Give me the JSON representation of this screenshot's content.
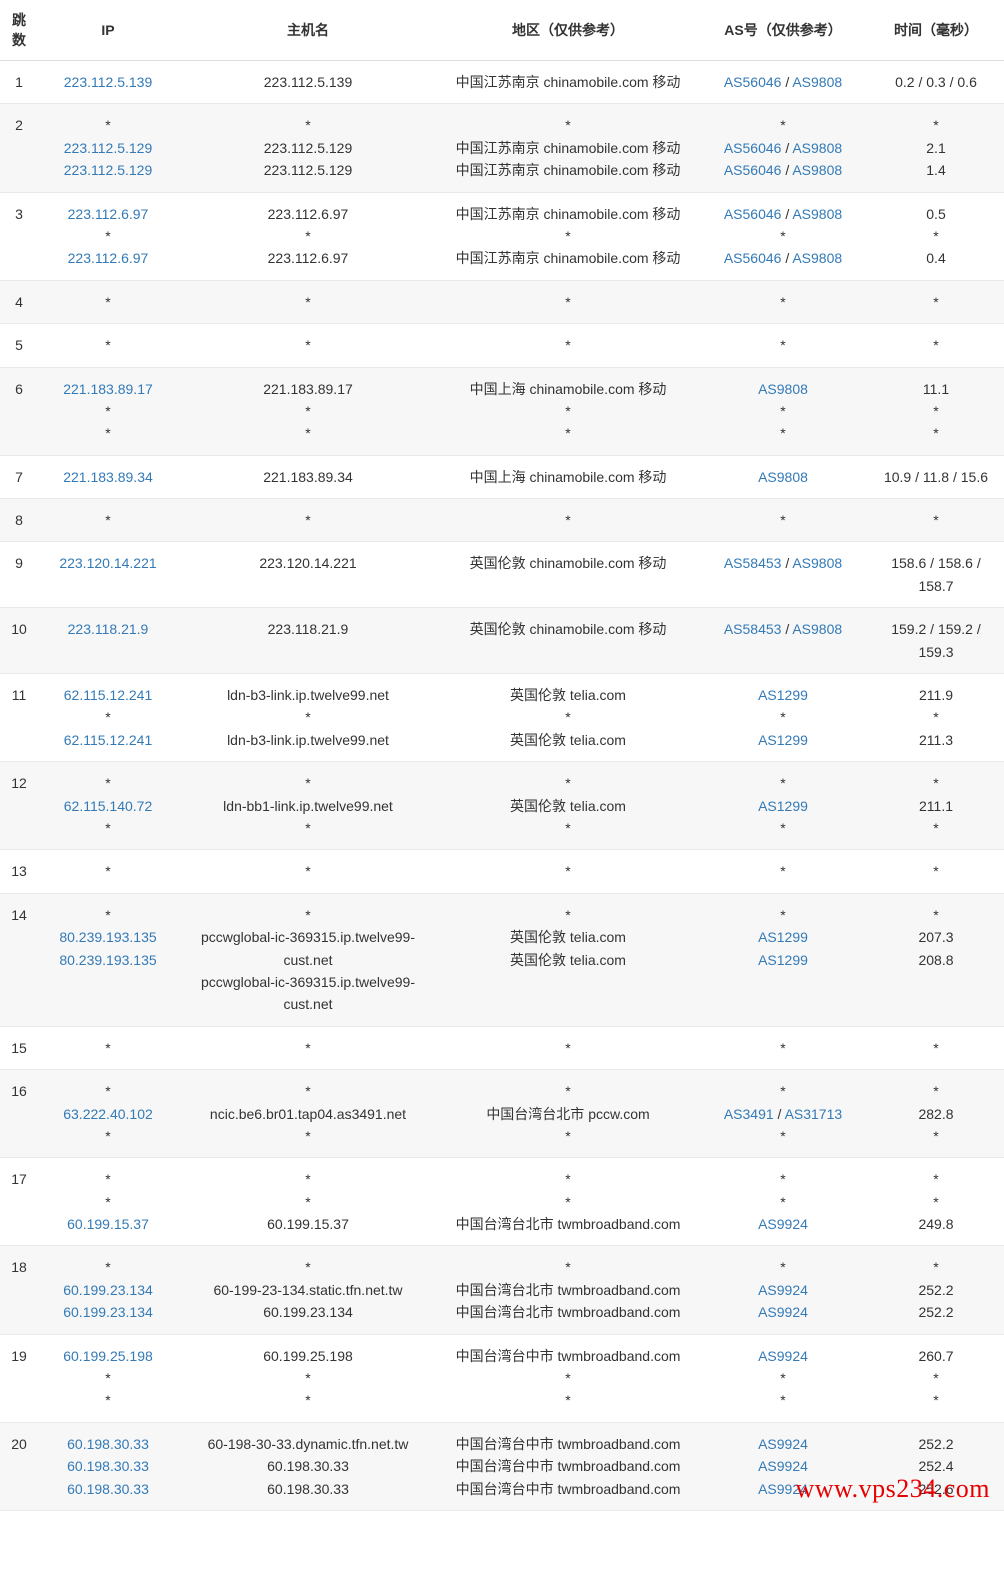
{
  "watermark": "www.vps234.com",
  "columns": [
    "跳数",
    "IP",
    "主机名",
    "地区（仅供参考）",
    "AS号（仅供参考）",
    "时间（毫秒）"
  ],
  "rows": [
    {
      "hop": "1",
      "ip": [
        {
          "text": "223.112.5.139",
          "link": true
        }
      ],
      "host": [
        {
          "text": "223.112.5.139",
          "link": false
        }
      ],
      "region": [
        {
          "text": "中国江苏南京 chinamobile.com 移动",
          "link": false
        }
      ],
      "asn": [
        {
          "text": "AS56046",
          "link": true
        },
        {
          "text": " / ",
          "link": false,
          "inline": true
        },
        {
          "text": "AS9808",
          "link": true
        }
      ],
      "asn_lines": [
        "AS56046 / AS9808"
      ],
      "time": [
        {
          "text": "0.2 / 0.3 / 0.6",
          "link": false
        }
      ]
    },
    {
      "hop": "2",
      "ip": [
        {
          "text": "*",
          "link": false
        },
        {
          "text": "223.112.5.129",
          "link": true
        },
        {
          "text": "223.112.5.129",
          "link": true
        }
      ],
      "host": [
        {
          "text": "*",
          "link": false
        },
        {
          "text": "223.112.5.129",
          "link": false
        },
        {
          "text": "223.112.5.129",
          "link": false
        }
      ],
      "region": [
        {
          "text": "*",
          "link": false
        },
        {
          "text": "中国江苏南京 chinamobile.com 移动",
          "link": false
        },
        {
          "text": "中国江苏南京 chinamobile.com 移动",
          "link": false
        }
      ],
      "asn_lines": [
        "*",
        "AS56046 / AS9808",
        "AS56046 / AS9808"
      ],
      "time": [
        {
          "text": "*",
          "link": false
        },
        {
          "text": "2.1",
          "link": false
        },
        {
          "text": "1.4",
          "link": false
        }
      ]
    },
    {
      "hop": "3",
      "ip": [
        {
          "text": "223.112.6.97",
          "link": true
        },
        {
          "text": "*",
          "link": false
        },
        {
          "text": "223.112.6.97",
          "link": true
        }
      ],
      "host": [
        {
          "text": "223.112.6.97",
          "link": false
        },
        {
          "text": "*",
          "link": false
        },
        {
          "text": "223.112.6.97",
          "link": false
        }
      ],
      "region": [
        {
          "text": "中国江苏南京 chinamobile.com 移动",
          "link": false
        },
        {
          "text": "*",
          "link": false
        },
        {
          "text": "中国江苏南京 chinamobile.com 移动",
          "link": false
        }
      ],
      "asn_lines": [
        "AS56046 / AS9808",
        "*",
        "AS56046 / AS9808"
      ],
      "time": [
        {
          "text": "0.5",
          "link": false
        },
        {
          "text": "*",
          "link": false
        },
        {
          "text": "0.4",
          "link": false
        }
      ]
    },
    {
      "hop": "4",
      "ip": [
        {
          "text": "*",
          "link": false
        }
      ],
      "host": [
        {
          "text": "*",
          "link": false
        }
      ],
      "region": [
        {
          "text": "*",
          "link": false
        }
      ],
      "asn_lines": [
        "*"
      ],
      "time": [
        {
          "text": "*",
          "link": false
        }
      ]
    },
    {
      "hop": "5",
      "ip": [
        {
          "text": "*",
          "link": false
        }
      ],
      "host": [
        {
          "text": "*",
          "link": false
        }
      ],
      "region": [
        {
          "text": "*",
          "link": false
        }
      ],
      "asn_lines": [
        "*"
      ],
      "time": [
        {
          "text": "*",
          "link": false
        }
      ]
    },
    {
      "hop": "6",
      "ip": [
        {
          "text": "221.183.89.17",
          "link": true
        },
        {
          "text": "*",
          "link": false
        },
        {
          "text": "*",
          "link": false
        }
      ],
      "host": [
        {
          "text": "221.183.89.17",
          "link": false
        },
        {
          "text": "*",
          "link": false
        },
        {
          "text": "*",
          "link": false
        }
      ],
      "region": [
        {
          "text": "中国上海 chinamobile.com 移动",
          "link": false
        },
        {
          "text": "*",
          "link": false
        },
        {
          "text": "*",
          "link": false
        }
      ],
      "asn_lines": [
        "AS9808",
        "*",
        "*"
      ],
      "time": [
        {
          "text": "11.1",
          "link": false
        },
        {
          "text": "*",
          "link": false
        },
        {
          "text": "*",
          "link": false
        }
      ]
    },
    {
      "hop": "7",
      "ip": [
        {
          "text": "221.183.89.34",
          "link": true
        }
      ],
      "host": [
        {
          "text": "221.183.89.34",
          "link": false
        }
      ],
      "region": [
        {
          "text": "中国上海 chinamobile.com 移动",
          "link": false
        }
      ],
      "asn_lines": [
        "AS9808"
      ],
      "time": [
        {
          "text": "10.9 / 11.8 / 15.6",
          "link": false
        }
      ]
    },
    {
      "hop": "8",
      "ip": [
        {
          "text": "*",
          "link": false
        }
      ],
      "host": [
        {
          "text": "*",
          "link": false
        }
      ],
      "region": [
        {
          "text": "*",
          "link": false
        }
      ],
      "asn_lines": [
        "*"
      ],
      "time": [
        {
          "text": "*",
          "link": false
        }
      ]
    },
    {
      "hop": "9",
      "ip": [
        {
          "text": "223.120.14.221",
          "link": true
        }
      ],
      "host": [
        {
          "text": "223.120.14.221",
          "link": false
        }
      ],
      "region": [
        {
          "text": "英国伦敦 chinamobile.com 移动",
          "link": false
        }
      ],
      "asn_lines": [
        "AS58453 / AS9808"
      ],
      "time": [
        {
          "text": "158.6 / 158.6 / 158.7",
          "link": false
        }
      ]
    },
    {
      "hop": "10",
      "ip": [
        {
          "text": "223.118.21.9",
          "link": true
        }
      ],
      "host": [
        {
          "text": "223.118.21.9",
          "link": false
        }
      ],
      "region": [
        {
          "text": "英国伦敦 chinamobile.com 移动",
          "link": false
        }
      ],
      "asn_lines": [
        "AS58453 / AS9808"
      ],
      "time": [
        {
          "text": "159.2 / 159.2 / 159.3",
          "link": false
        }
      ]
    },
    {
      "hop": "11",
      "ip": [
        {
          "text": "62.115.12.241",
          "link": true
        },
        {
          "text": "*",
          "link": false
        },
        {
          "text": "62.115.12.241",
          "link": true
        }
      ],
      "host": [
        {
          "text": "ldn-b3-link.ip.twelve99.net",
          "link": false
        },
        {
          "text": "*",
          "link": false
        },
        {
          "text": "ldn-b3-link.ip.twelve99.net",
          "link": false
        }
      ],
      "region": [
        {
          "text": "英国伦敦 telia.com",
          "link": false
        },
        {
          "text": "*",
          "link": false
        },
        {
          "text": "英国伦敦 telia.com",
          "link": false
        }
      ],
      "asn_lines": [
        "AS1299",
        "*",
        "AS1299"
      ],
      "time": [
        {
          "text": "211.9",
          "link": false
        },
        {
          "text": "*",
          "link": false
        },
        {
          "text": "211.3",
          "link": false
        }
      ]
    },
    {
      "hop": "12",
      "ip": [
        {
          "text": "*",
          "link": false
        },
        {
          "text": "62.115.140.72",
          "link": true
        },
        {
          "text": "*",
          "link": false
        }
      ],
      "host": [
        {
          "text": "*",
          "link": false
        },
        {
          "text": "ldn-bb1-link.ip.twelve99.net",
          "link": false
        },
        {
          "text": "*",
          "link": false
        }
      ],
      "region": [
        {
          "text": "*",
          "link": false
        },
        {
          "text": "英国伦敦 telia.com",
          "link": false
        },
        {
          "text": "*",
          "link": false
        }
      ],
      "asn_lines": [
        "*",
        "AS1299",
        "*"
      ],
      "time": [
        {
          "text": "*",
          "link": false
        },
        {
          "text": "211.1",
          "link": false
        },
        {
          "text": "*",
          "link": false
        }
      ]
    },
    {
      "hop": "13",
      "ip": [
        {
          "text": "*",
          "link": false
        }
      ],
      "host": [
        {
          "text": "*",
          "link": false
        }
      ],
      "region": [
        {
          "text": "*",
          "link": false
        }
      ],
      "asn_lines": [
        "*"
      ],
      "time": [
        {
          "text": "*",
          "link": false
        }
      ]
    },
    {
      "hop": "14",
      "ip": [
        {
          "text": "*",
          "link": false
        },
        {
          "text": "80.239.193.135",
          "link": true
        },
        {
          "text": "80.239.193.135",
          "link": true
        }
      ],
      "host": [
        {
          "text": "*",
          "link": false
        },
        {
          "text": "pccwglobal-ic-369315.ip.twelve99-cust.net",
          "link": false
        },
        {
          "text": "pccwglobal-ic-369315.ip.twelve99-cust.net",
          "link": false
        }
      ],
      "region": [
        {
          "text": "*",
          "link": false
        },
        {
          "text": "英国伦敦 telia.com",
          "link": false
        },
        {
          "text": "英国伦敦 telia.com",
          "link": false
        }
      ],
      "asn_lines": [
        "*",
        "AS1299",
        "AS1299"
      ],
      "time": [
        {
          "text": "*",
          "link": false
        },
        {
          "text": "207.3",
          "link": false
        },
        {
          "text": "208.8",
          "link": false
        }
      ]
    },
    {
      "hop": "15",
      "ip": [
        {
          "text": "*",
          "link": false
        }
      ],
      "host": [
        {
          "text": "*",
          "link": false
        }
      ],
      "region": [
        {
          "text": "*",
          "link": false
        }
      ],
      "asn_lines": [
        "*"
      ],
      "time": [
        {
          "text": "*",
          "link": false
        }
      ]
    },
    {
      "hop": "16",
      "ip": [
        {
          "text": "*",
          "link": false
        },
        {
          "text": "63.222.40.102",
          "link": true
        },
        {
          "text": "*",
          "link": false
        }
      ],
      "host": [
        {
          "text": "*",
          "link": false
        },
        {
          "text": "ncic.be6.br01.tap04.as3491.net",
          "link": false
        },
        {
          "text": "*",
          "link": false
        }
      ],
      "region": [
        {
          "text": "*",
          "link": false
        },
        {
          "text": "中国台湾台北市 pccw.com",
          "link": false
        },
        {
          "text": "*",
          "link": false
        }
      ],
      "asn_lines": [
        "*",
        "AS3491 / AS31713",
        "*"
      ],
      "time": [
        {
          "text": "*",
          "link": false
        },
        {
          "text": "282.8",
          "link": false
        },
        {
          "text": "*",
          "link": false
        }
      ]
    },
    {
      "hop": "17",
      "ip": [
        {
          "text": "*",
          "link": false
        },
        {
          "text": "*",
          "link": false
        },
        {
          "text": "60.199.15.37",
          "link": true
        }
      ],
      "host": [
        {
          "text": "*",
          "link": false
        },
        {
          "text": "*",
          "link": false
        },
        {
          "text": "60.199.15.37",
          "link": false
        }
      ],
      "region": [
        {
          "text": "*",
          "link": false
        },
        {
          "text": "*",
          "link": false
        },
        {
          "text": "中国台湾台北市 twmbroadband.com",
          "link": false
        }
      ],
      "asn_lines": [
        "*",
        "*",
        "AS9924"
      ],
      "time": [
        {
          "text": "*",
          "link": false
        },
        {
          "text": "*",
          "link": false
        },
        {
          "text": "249.8",
          "link": false
        }
      ]
    },
    {
      "hop": "18",
      "ip": [
        {
          "text": "*",
          "link": false
        },
        {
          "text": "60.199.23.134",
          "link": true
        },
        {
          "text": "60.199.23.134",
          "link": true
        }
      ],
      "host": [
        {
          "text": "*",
          "link": false
        },
        {
          "text": "60-199-23-134.static.tfn.net.tw",
          "link": false
        },
        {
          "text": "60.199.23.134",
          "link": false
        }
      ],
      "region": [
        {
          "text": "*",
          "link": false
        },
        {
          "text": "中国台湾台北市 twmbroadband.com",
          "link": false
        },
        {
          "text": "中国台湾台北市 twmbroadband.com",
          "link": false
        }
      ],
      "asn_lines": [
        "*",
        "AS9924",
        "AS9924"
      ],
      "time": [
        {
          "text": "*",
          "link": false
        },
        {
          "text": "252.2",
          "link": false
        },
        {
          "text": "252.2",
          "link": false
        }
      ]
    },
    {
      "hop": "19",
      "ip": [
        {
          "text": "60.199.25.198",
          "link": true
        },
        {
          "text": "*",
          "link": false
        },
        {
          "text": "*",
          "link": false
        }
      ],
      "host": [
        {
          "text": "60.199.25.198",
          "link": false
        },
        {
          "text": "*",
          "link": false
        },
        {
          "text": "*",
          "link": false
        }
      ],
      "region": [
        {
          "text": "中国台湾台中市 twmbroadband.com",
          "link": false
        },
        {
          "text": "*",
          "link": false
        },
        {
          "text": "*",
          "link": false
        }
      ],
      "asn_lines": [
        "AS9924",
        "*",
        "*"
      ],
      "time": [
        {
          "text": "260.7",
          "link": false
        },
        {
          "text": "*",
          "link": false
        },
        {
          "text": "*",
          "link": false
        }
      ]
    },
    {
      "hop": "20",
      "ip": [
        {
          "text": "60.198.30.33",
          "link": true
        },
        {
          "text": "60.198.30.33",
          "link": true
        },
        {
          "text": "60.198.30.33",
          "link": true
        }
      ],
      "host": [
        {
          "text": "60-198-30-33.dynamic.tfn.net.tw",
          "link": false
        },
        {
          "text": "60.198.30.33",
          "link": false
        },
        {
          "text": "60.198.30.33",
          "link": false
        }
      ],
      "region": [
        {
          "text": "中国台湾台中市 twmbroadband.com",
          "link": false
        },
        {
          "text": "中国台湾台中市 twmbroadband.com",
          "link": false
        },
        {
          "text": "中国台湾台中市 twmbroadband.com",
          "link": false
        }
      ],
      "asn_lines": [
        "AS9924",
        "AS9924",
        "AS9924"
      ],
      "time": [
        {
          "text": "252.2",
          "link": false
        },
        {
          "text": "252.4",
          "link": false
        },
        {
          "text": "252.6",
          "link": false
        }
      ]
    }
  ],
  "styles": {
    "link_color": "#337ab7",
    "text_color": "#333333",
    "border_color": "#eaeaea",
    "header_border_color": "#dddddd",
    "alt_row_bg": "#f7f7f7",
    "watermark_color": "#e60000",
    "font_size": 14
  }
}
